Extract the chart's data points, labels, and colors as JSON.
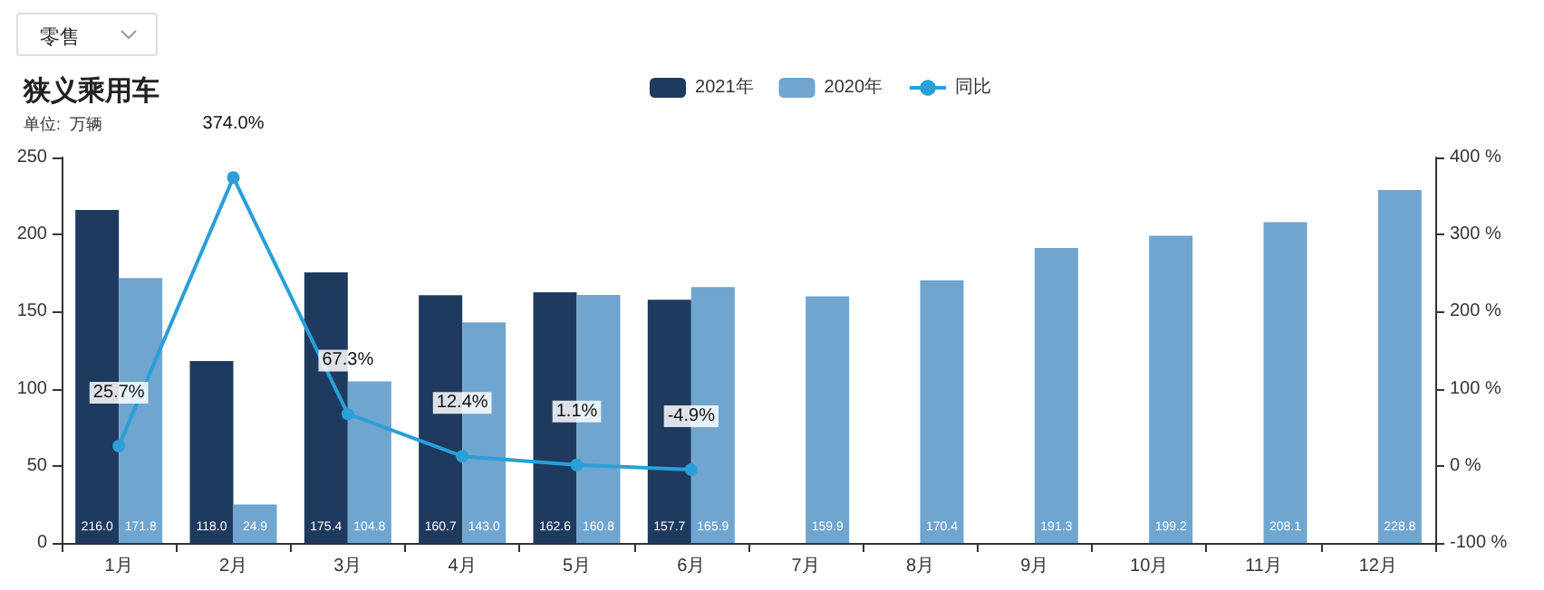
{
  "chart_data": {
    "type": "bar",
    "title": "狭义乘用车",
    "subtitle": "单位:  万辆",
    "annotations": [
      "零售"
    ],
    "categories": [
      "1月",
      "2月",
      "3月",
      "4月",
      "5月",
      "6月",
      "7月",
      "8月",
      "9月",
      "10月",
      "11月",
      "12月"
    ],
    "series": [
      {
        "name": "2021年",
        "color": "#1f3a5f",
        "values": [
          216.0,
          118.0,
          175.4,
          160.7,
          162.6,
          157.7,
          null,
          null,
          null,
          null,
          null,
          null
        ],
        "value_labels": [
          "216.0",
          "118.0",
          "175.4",
          "160.7",
          "162.6",
          "157.7",
          null,
          null,
          null,
          null,
          null,
          null
        ]
      },
      {
        "name": "2020年",
        "color": "#6fa5cf",
        "values": [
          171.8,
          24.9,
          104.8,
          143.0,
          160.8,
          165.9,
          159.9,
          170.4,
          191.3,
          199.2,
          208.1,
          228.8
        ],
        "value_labels": [
          "171.8",
          "24.9",
          "104.8",
          "143.0",
          "160.8",
          "165.9",
          "159.9",
          "170.4",
          "191.3",
          "199.2",
          "208.1",
          "228.8"
        ]
      },
      {
        "name": "同比",
        "type": "line",
        "axis": "y2",
        "color": "#2a9fd8",
        "values": [
          25.7,
          374.0,
          67.3,
          12.4,
          1.1,
          -4.9,
          null,
          null,
          null,
          null,
          null,
          null
        ],
        "value_labels": [
          "25.7%",
          "374.0%",
          "67.3%",
          "12.4%",
          "1.1%",
          "-4.9%",
          null,
          null,
          null,
          null,
          null,
          null
        ]
      }
    ],
    "ylim": [
      0,
      250
    ],
    "yticks": [
      0,
      50,
      100,
      150,
      200,
      250
    ],
    "y2lim": [
      -100,
      400
    ],
    "y2ticks": [
      {
        "value": -100,
        "label": "-100 %"
      },
      {
        "value": 0,
        "label": "0 %"
      },
      {
        "value": 100,
        "label": "100 %"
      },
      {
        "value": 200,
        "label": "200 %"
      },
      {
        "value": 300,
        "label": "300 %"
      },
      {
        "value": 400,
        "label": "400 %"
      }
    ],
    "data_labels": true,
    "legend": "top right",
    "grid": false,
    "marker": "circle",
    "line_style": "solid"
  }
}
